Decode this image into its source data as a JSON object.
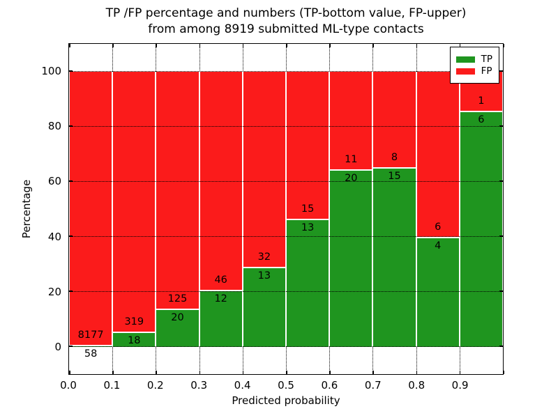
{
  "chart_data": {
    "type": "bar",
    "stacked": true,
    "title_line1": "TP /FP percentage and numbers (TP-bottom value, FP-upper)",
    "title_line2": "from among 8919 submitted ML-type contacts",
    "xlabel": "Predicted probability",
    "ylabel": "Percentage",
    "total_contacts": 8919,
    "bins": [
      0.0,
      0.1,
      0.2,
      0.3,
      0.4,
      0.5,
      0.6,
      0.7,
      0.8,
      0.9
    ],
    "bin_width": 0.1,
    "xtick_labels": [
      "0.0",
      "0.1",
      "0.2",
      "0.3",
      "0.4",
      "0.5",
      "0.6",
      "0.7",
      "0.8",
      "0.9"
    ],
    "yticks": [
      0,
      20,
      40,
      60,
      80,
      100
    ],
    "ylim": [
      -10,
      110
    ],
    "xlim": [
      0.0,
      1.0
    ],
    "grid": "dotted",
    "legend_position": "upper right",
    "series": [
      {
        "name": "TP",
        "color": "#1f951f",
        "counts": [
          58,
          18,
          20,
          12,
          13,
          13,
          20,
          15,
          4,
          6
        ]
      },
      {
        "name": "FP",
        "color": "#fb1b1b",
        "counts": [
          8177,
          319,
          125,
          46,
          32,
          15,
          11,
          8,
          6,
          1
        ]
      }
    ],
    "tp_percent_of_bin": [
      0.7,
      5.34,
      13.79,
      20.69,
      28.89,
      46.43,
      64.52,
      65.22,
      40.0,
      85.71
    ]
  }
}
